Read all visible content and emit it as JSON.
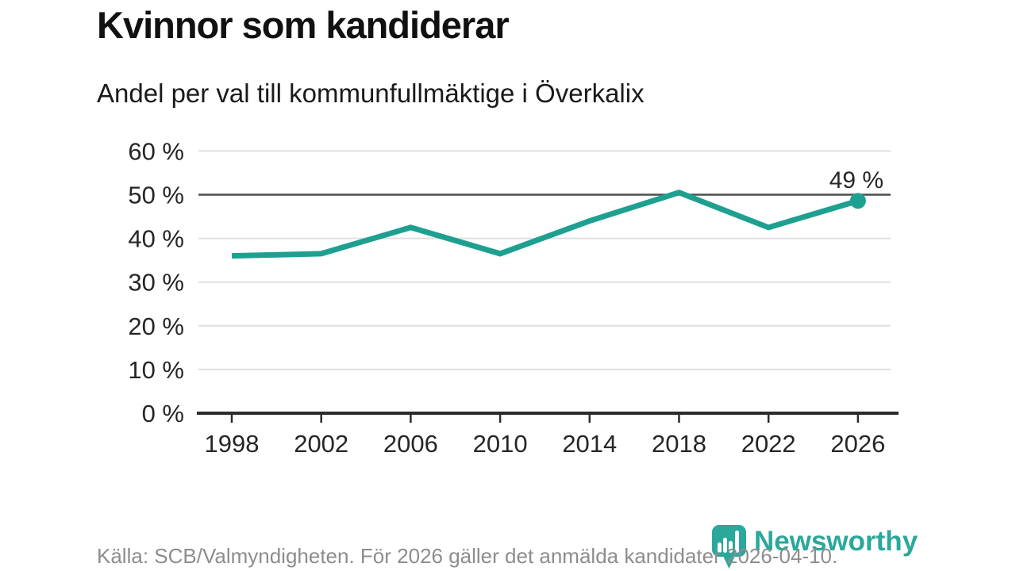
{
  "chart_data": {
    "type": "line",
    "title": "Kvinnor som kandiderar",
    "subtitle": "Andel per val till kommunfullmäktige i Överkalix",
    "x": [
      1998,
      2002,
      2006,
      2010,
      2014,
      2018,
      2022,
      2026
    ],
    "x_labels": [
      "1998",
      "2002",
      "2006",
      "2010",
      "2014",
      "2018",
      "2022",
      "2026"
    ],
    "values": [
      36,
      36.5,
      42.5,
      36.5,
      44,
      50.5,
      42.5,
      48.6
    ],
    "unit": "%",
    "ylim": [
      0,
      60
    ],
    "yticks": [
      0,
      10,
      20,
      30,
      40,
      50,
      60
    ],
    "ytick_labels": [
      "0 %",
      "10 %",
      "20 %",
      "30 %",
      "40 %",
      "50 %",
      "60 %"
    ],
    "emphasized_gridline": 50,
    "end_label": "49 %",
    "line_color": "#1ea091",
    "marker_on_last_point": true,
    "grid": "horizontal",
    "legend": "none"
  },
  "footer": {
    "source": "Källa: SCB/Valmyndigheten. För 2026 gäller det anmälda kandidater 2026-04-10."
  },
  "logo": {
    "text": "Newsworthy",
    "icon": "newsworthy-badge-icon",
    "color": "#2aa99b"
  }
}
